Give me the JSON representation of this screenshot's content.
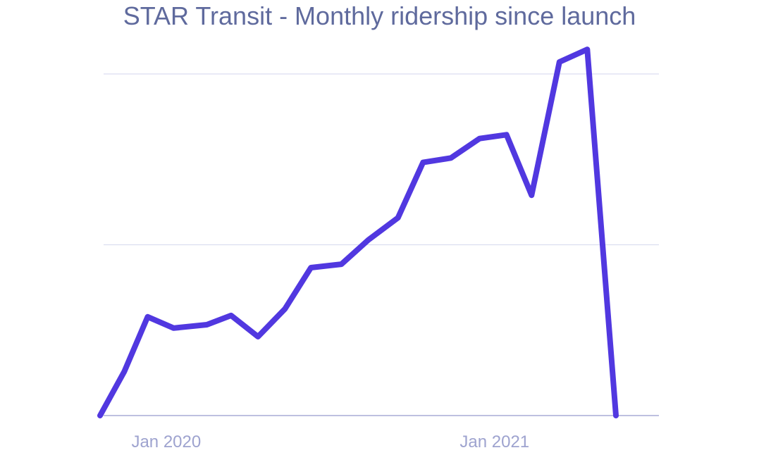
{
  "chart_data": {
    "type": "line",
    "title": "STAR Transit - Monthly ridership since launch",
    "xlabel": "",
    "ylabel": "",
    "x": [
      "2019-12-01",
      "2019-12-28",
      "2020-01-23",
      "2020-02-21",
      "2020-03-29",
      "2020-04-25",
      "2020-05-25",
      "2020-06-24",
      "2020-07-23",
      "2020-08-26",
      "2020-09-25",
      "2020-10-28",
      "2020-11-25",
      "2020-12-26",
      "2021-01-27",
      "2021-02-26",
      "2021-03-26",
      "2021-04-26",
      "2021-05-27",
      "2021-06-28"
    ],
    "values": [
      0,
      12.9,
      28.9,
      25.6,
      26.6,
      29.3,
      23.1,
      31.2,
      43.3,
      44.3,
      51.4,
      57.9,
      74.1,
      75.4,
      81.1,
      82.2,
      64.5,
      103.5,
      107.2,
      0
    ],
    "xticks": [
      {
        "label": "Jan 2020",
        "date": "2020-01-01"
      },
      {
        "label": "Jan 2021",
        "date": "2021-01-01"
      }
    ],
    "ylim": [
      0,
      100
    ],
    "yticks": [
      0,
      50,
      100
    ],
    "grid": true,
    "legend": "none",
    "colors": {
      "line": "#5138e0",
      "grid": "#dcdef0",
      "axis": "#a9acd6",
      "title": "#5f6a9d",
      "tick_label": "#9ea3cf"
    }
  }
}
